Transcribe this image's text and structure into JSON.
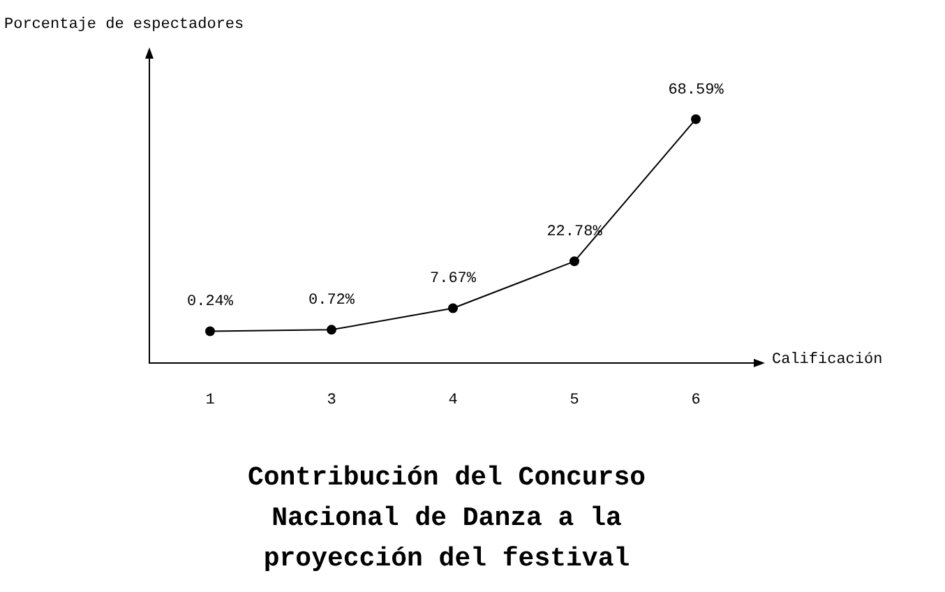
{
  "chart_data": {
    "type": "line",
    "title": "Contribución del Concurso Nacional de Danza a la proyección del festival",
    "xlabel": "Calificación",
    "ylabel": "Porcentaje de espectadores",
    "categories": [
      "1",
      "3",
      "4",
      "5",
      "6"
    ],
    "values": [
      0.24,
      0.72,
      7.67,
      22.78,
      68.59
    ],
    "value_labels": [
      "0.24%",
      "0.72%",
      "7.67%",
      "22.78%",
      "68.59%"
    ],
    "color": "#000000",
    "marker": "circle",
    "line_style": "solid",
    "legend": false,
    "ylim": [
      -10,
      89
    ]
  }
}
